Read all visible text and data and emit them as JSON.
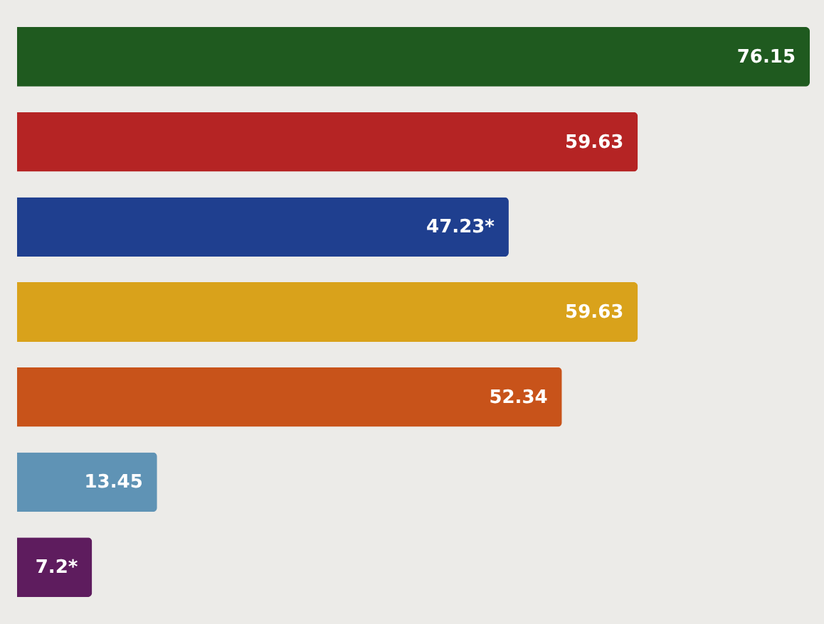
{
  "chart_data": {
    "type": "bar",
    "orientation": "horizontal",
    "categories": [
      null,
      null,
      null,
      null,
      null,
      null,
      null
    ],
    "values": [
      76.15,
      59.63,
      47.23,
      59.63,
      52.34,
      13.45,
      7.2
    ],
    "value_labels": [
      "76.15",
      "59.63",
      "47.23*",
      "59.63",
      "52.34",
      "13.45",
      "7.2*"
    ],
    "colors": [
      "#1f5a1f",
      "#b52424",
      "#1f3f8f",
      "#d9a21b",
      "#c8531a",
      "#5f93b5",
      "#5e1c5e"
    ],
    "legend": false
  }
}
